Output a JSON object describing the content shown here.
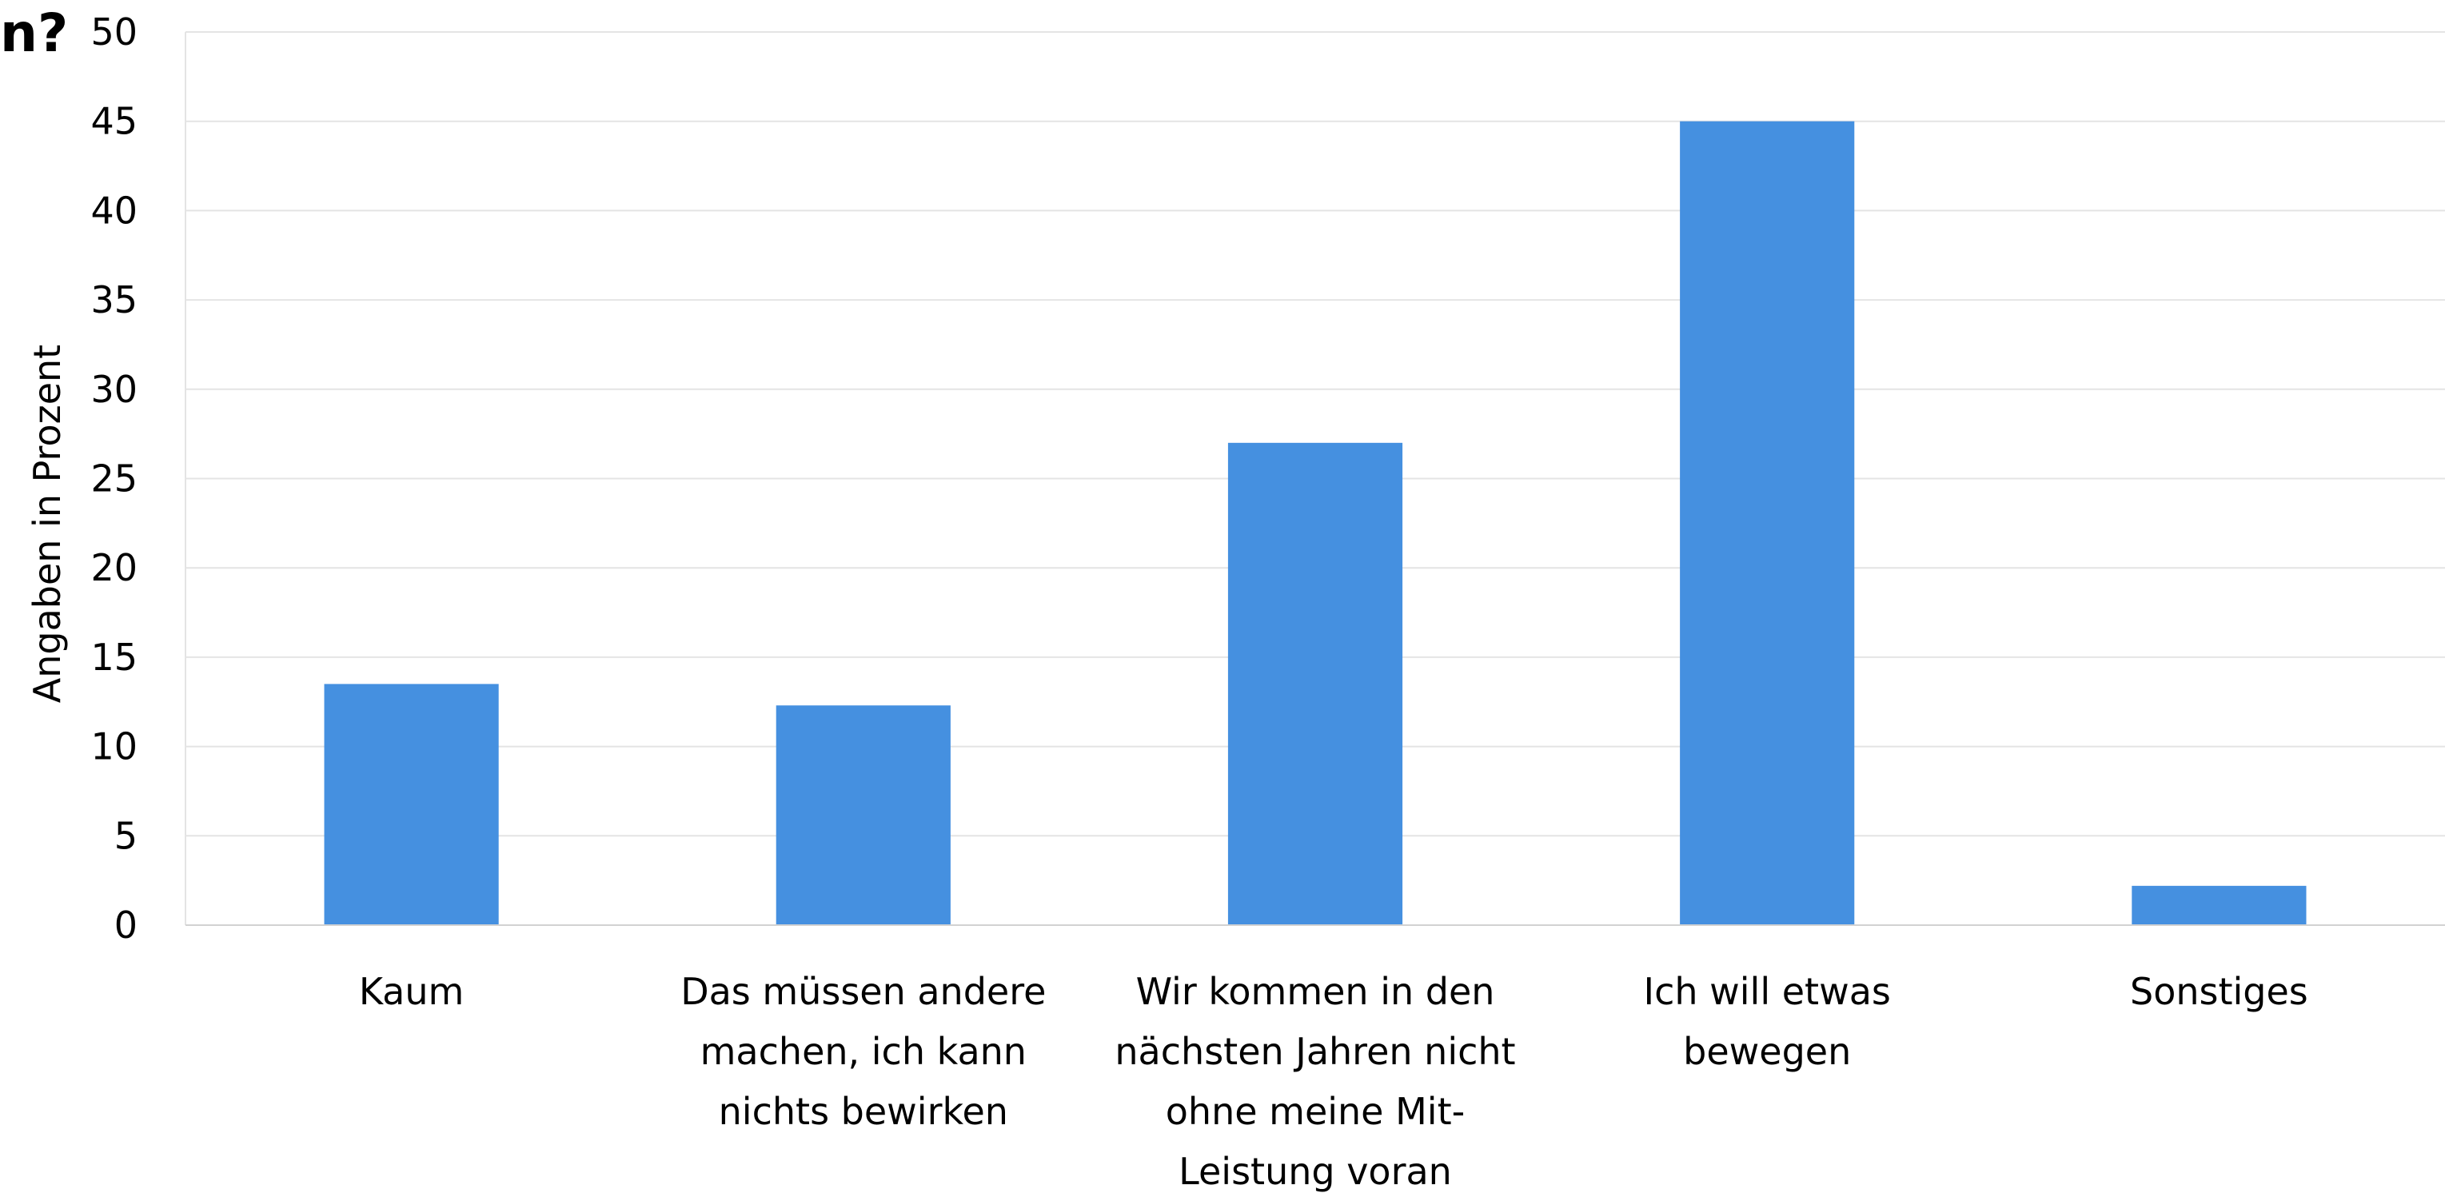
{
  "chart_data": {
    "type": "bar",
    "title_fragment": "n?",
    "ylabel": "Angaben in Prozent",
    "xlabel": "",
    "ylim": [
      0,
      50
    ],
    "yticks": [
      0,
      5,
      10,
      15,
      20,
      25,
      30,
      35,
      40,
      45,
      50
    ],
    "grid": true,
    "bar_color": "#4590e0",
    "grid_color": "#e4e4e4",
    "categories": [
      [
        "Kaum"
      ],
      [
        "Das müssen andere",
        "machen, ich kann",
        "nichts bewirken"
      ],
      [
        "Wir kommen in den",
        "nächsten Jahren nicht",
        "ohne meine Mit-",
        "Leistung voran"
      ],
      [
        "Ich will etwas",
        "bewegen"
      ],
      [
        "Sonstiges"
      ]
    ],
    "values": [
      13.5,
      12.3,
      27.0,
      45.0,
      2.2
    ]
  }
}
